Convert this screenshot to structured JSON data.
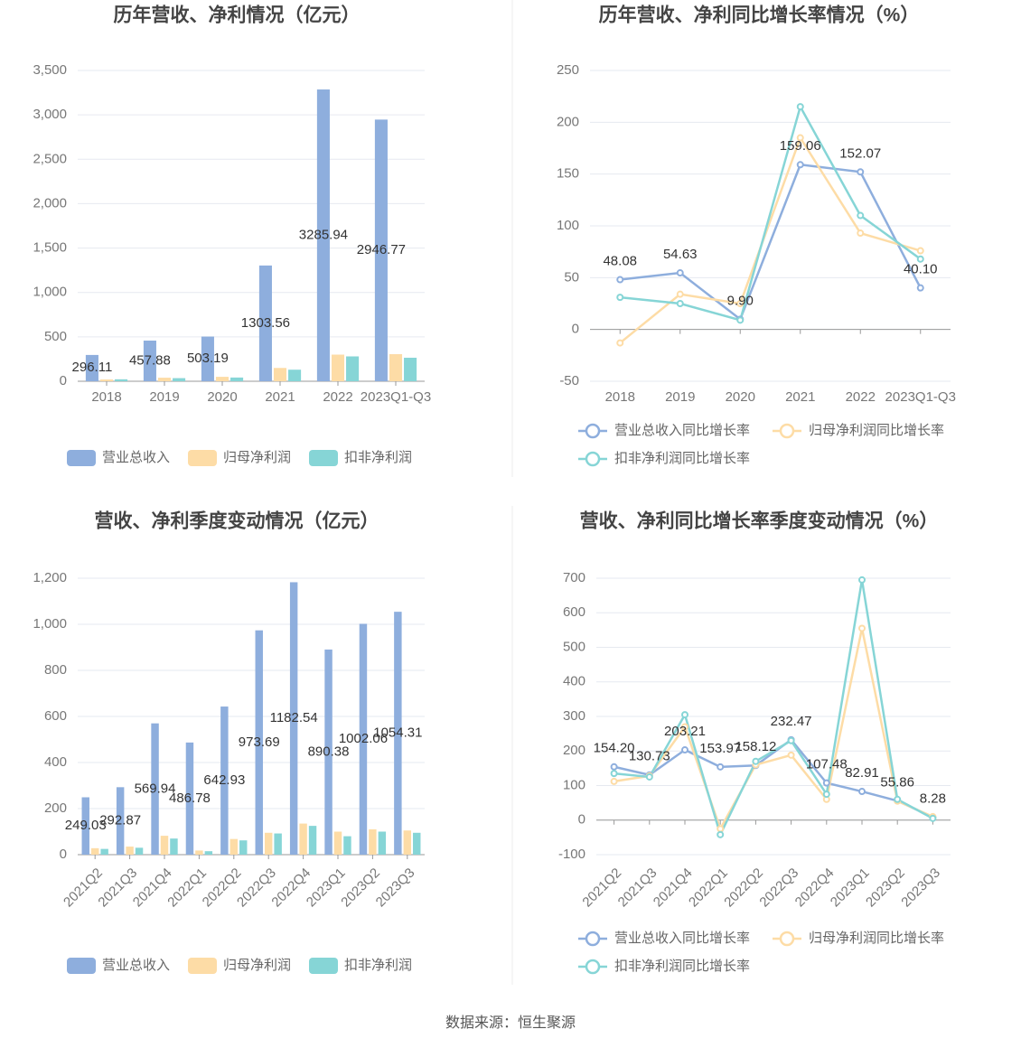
{
  "chart_data": [
    {
      "type": "bar",
      "title": "历年营收、净利情况（亿元）",
      "categories": [
        "2018",
        "2019",
        "2020",
        "2021",
        "2022",
        "2023Q1-Q3"
      ],
      "series": [
        {
          "name": "营业总收入",
          "color": "#8eaedd",
          "show_values": true,
          "values": [
            296.11,
            457.88,
            503.19,
            1303.56,
            3285.94,
            2946.77
          ]
        },
        {
          "name": "归母净利润",
          "color": "#fddca6",
          "values": [
            20,
            40,
            50,
            150,
            300,
            305
          ]
        },
        {
          "name": "扣非净利润",
          "color": "#86d5d6",
          "values": [
            22,
            35,
            42,
            130,
            280,
            265
          ]
        }
      ],
      "ylim": [
        0,
        3500
      ],
      "yticks": [
        0,
        500,
        {
          "value": 1000,
          "label": "1,000"
        },
        {
          "value": 1500,
          "label": "1,500"
        },
        {
          "value": 2000,
          "label": "2,000"
        },
        {
          "value": 2500,
          "label": "2,500"
        },
        {
          "value": 3000,
          "label": "3,000"
        },
        {
          "value": 3500,
          "label": "3,500"
        }
      ],
      "grid": true
    },
    {
      "type": "line",
      "title": "历年营收、净利同比增长率情况（%）",
      "categories": [
        "2018",
        "2019",
        "2020",
        "2021",
        "2022",
        "2023Q1-Q3"
      ],
      "series": [
        {
          "name": "营业总收入同比增长率",
          "color": "#8eaedd",
          "values": [
            48.08,
            54.63,
            9.9,
            159.06,
            152.07,
            40.1
          ],
          "value_labels": [
            "48.08",
            "54.63",
            "9.90",
            "159.06",
            "152.07",
            "40.10"
          ]
        },
        {
          "name": "归母净利润同比增长率",
          "color": "#fddca6",
          "values": [
            -13,
            34,
            25,
            185,
            93,
            76
          ]
        },
        {
          "name": "扣非净利润同比增长率",
          "color": "#86d5d6",
          "values": [
            31,
            25,
            9,
            215,
            110,
            68
          ]
        }
      ],
      "ylim": [
        -50,
        250
      ],
      "yticks": [
        -50,
        0,
        50,
        100,
        150,
        200,
        250
      ],
      "grid": true
    },
    {
      "type": "bar",
      "title": "营收、净利季度变动情况（亿元）",
      "categories": [
        "2021Q2",
        "2021Q3",
        "2021Q4",
        "2022Q1",
        "2022Q2",
        "2022Q3",
        "2022Q4",
        "2023Q1",
        "2023Q2",
        "2023Q3"
      ],
      "series": [
        {
          "name": "营业总收入",
          "color": "#8eaedd",
          "show_values": true,
          "values": [
            249.03,
            292.87,
            569.94,
            486.78,
            642.93,
            973.69,
            1182.54,
            890.38,
            1002.06,
            1054.31
          ]
        },
        {
          "name": "归母净利润",
          "color": "#fddca6",
          "values": [
            28,
            35,
            82,
            18,
            68,
            95,
            135,
            100,
            110,
            105
          ]
        },
        {
          "name": "扣非净利润",
          "color": "#86d5d6",
          "values": [
            25,
            30,
            70,
            15,
            62,
            92,
            125,
            80,
            100,
            95
          ]
        }
      ],
      "ylim": [
        0,
        1200
      ],
      "yticks": [
        0,
        200,
        400,
        600,
        800,
        {
          "value": 1000,
          "label": "1,000"
        },
        {
          "value": 1200,
          "label": "1,200"
        }
      ],
      "grid": true
    },
    {
      "type": "line",
      "title": "营收、净利同比增长率季度变动情况（%）",
      "categories": [
        "2021Q2",
        "2021Q3",
        "2021Q4",
        "2022Q1",
        "2022Q2",
        "2022Q3",
        "2022Q4",
        "2023Q1",
        "2023Q2",
        "2023Q3"
      ],
      "series": [
        {
          "name": "营业总收入同比增长率",
          "color": "#8eaedd",
          "values": [
            154.2,
            130.73,
            203.21,
            153.97,
            158.12,
            232.47,
            107.48,
            82.91,
            55.86,
            8.28
          ],
          "value_labels": [
            "154.20",
            "130.73",
            "203.21",
            "153.97",
            "158.12",
            "232.47",
            "107.48",
            "82.91",
            "55.86",
            "8.28"
          ]
        },
        {
          "name": "归母净利润同比增长率",
          "color": "#fddca6",
          "values": [
            112,
            128,
            270,
            -25,
            160,
            188,
            60,
            555,
            55,
            10
          ]
        },
        {
          "name": "扣非净利润同比增长率",
          "color": "#86d5d6",
          "values": [
            135,
            125,
            305,
            -42,
            170,
            230,
            75,
            695,
            60,
            5
          ]
        }
      ],
      "ylim": [
        -100,
        700
      ],
      "yticks": [
        -100,
        0,
        100,
        200,
        300,
        400,
        500,
        600,
        700
      ],
      "grid": true
    }
  ],
  "source": "数据来源：恒生聚源"
}
